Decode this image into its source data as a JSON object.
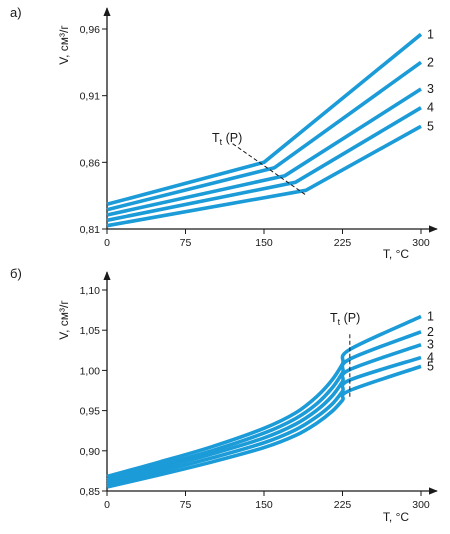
{
  "chart_data": [
    {
      "type": "line",
      "panel_label": "а)",
      "xlabel": "T, °C",
      "ylabel": "V, см³/г",
      "xlim": [
        0,
        300
      ],
      "ylim": [
        0.81,
        0.96
      ],
      "x_ticks": [
        "0",
        "75",
        "150",
        "225",
        "300"
      ],
      "y_ticks": [
        "0,81",
        "0,86",
        "0,91",
        "0,96"
      ],
      "color": "#1b9bd8",
      "annotation": {
        "main": "T",
        "sub": "t",
        "rest": " (P)"
      },
      "series": [
        {
          "name": "1",
          "x": [
            0,
            150,
            300
          ],
          "y": [
            0.8285,
            0.86,
            0.956
          ]
        },
        {
          "name": "2",
          "x": [
            0,
            160,
            300
          ],
          "y": [
            0.8245,
            0.856,
            0.935
          ]
        },
        {
          "name": "3",
          "x": [
            0,
            170,
            300
          ],
          "y": [
            0.8205,
            0.85,
            0.915
          ]
        },
        {
          "name": "4",
          "x": [
            0,
            180,
            300
          ],
          "y": [
            0.8165,
            0.845,
            0.901
          ]
        },
        {
          "name": "5",
          "x": [
            0,
            190,
            300
          ],
          "y": [
            0.8125,
            0.839,
            0.887
          ]
        }
      ],
      "transition_line": {
        "x": [
          120,
          190
        ],
        "y": [
          0.874,
          0.8355
        ]
      }
    },
    {
      "type": "line",
      "panel_label": "б)",
      "xlabel": "T, °C",
      "ylabel": "V, см³/г",
      "xlim": [
        0,
        300
      ],
      "ylim": [
        0.85,
        1.1
      ],
      "x_ticks": [
        "0",
        "75",
        "150",
        "225",
        "300"
      ],
      "y_ticks": [
        "0,85",
        "0,90",
        "0,95",
        "1,00",
        "1,05",
        "1,10"
      ],
      "color": "#1b9bd8",
      "annotation": {
        "main": "T",
        "sub": "t",
        "rest": " (P)"
      },
      "series": [
        {
          "name": "1",
          "x": [
            0,
            50,
            100,
            150,
            180,
            200,
            215,
            225,
            232,
            300
          ],
          "y": [
            0.868,
            0.886,
            0.905,
            0.928,
            0.947,
            0.967,
            0.988,
            1.008,
            1.026,
            1.067
          ]
        },
        {
          "name": "2",
          "x": [
            0,
            50,
            100,
            150,
            180,
            200,
            215,
            225,
            232,
            300
          ],
          "y": [
            0.864,
            0.882,
            0.9,
            0.922,
            0.94,
            0.958,
            0.978,
            0.997,
            1.014,
            1.048
          ]
        },
        {
          "name": "3",
          "x": [
            0,
            50,
            100,
            150,
            180,
            200,
            215,
            225,
            232,
            300
          ],
          "y": [
            0.861,
            0.878,
            0.896,
            0.916,
            0.933,
            0.95,
            0.968,
            0.986,
            1.001,
            1.032
          ]
        },
        {
          "name": "4",
          "x": [
            0,
            50,
            100,
            150,
            180,
            200,
            215,
            225,
            232,
            300
          ],
          "y": [
            0.858,
            0.874,
            0.891,
            0.91,
            0.926,
            0.942,
            0.958,
            0.974,
            0.988,
            1.016
          ]
        },
        {
          "name": "5",
          "x": [
            0,
            50,
            100,
            150,
            180,
            200,
            215,
            225,
            232,
            300
          ],
          "y": [
            0.855,
            0.87,
            0.886,
            0.904,
            0.919,
            0.934,
            0.949,
            0.963,
            0.975,
            1.005
          ]
        }
      ],
      "transition_line": {
        "x": [
          232,
          232
        ],
        "y": [
          1.045,
          0.965
        ]
      }
    }
  ]
}
